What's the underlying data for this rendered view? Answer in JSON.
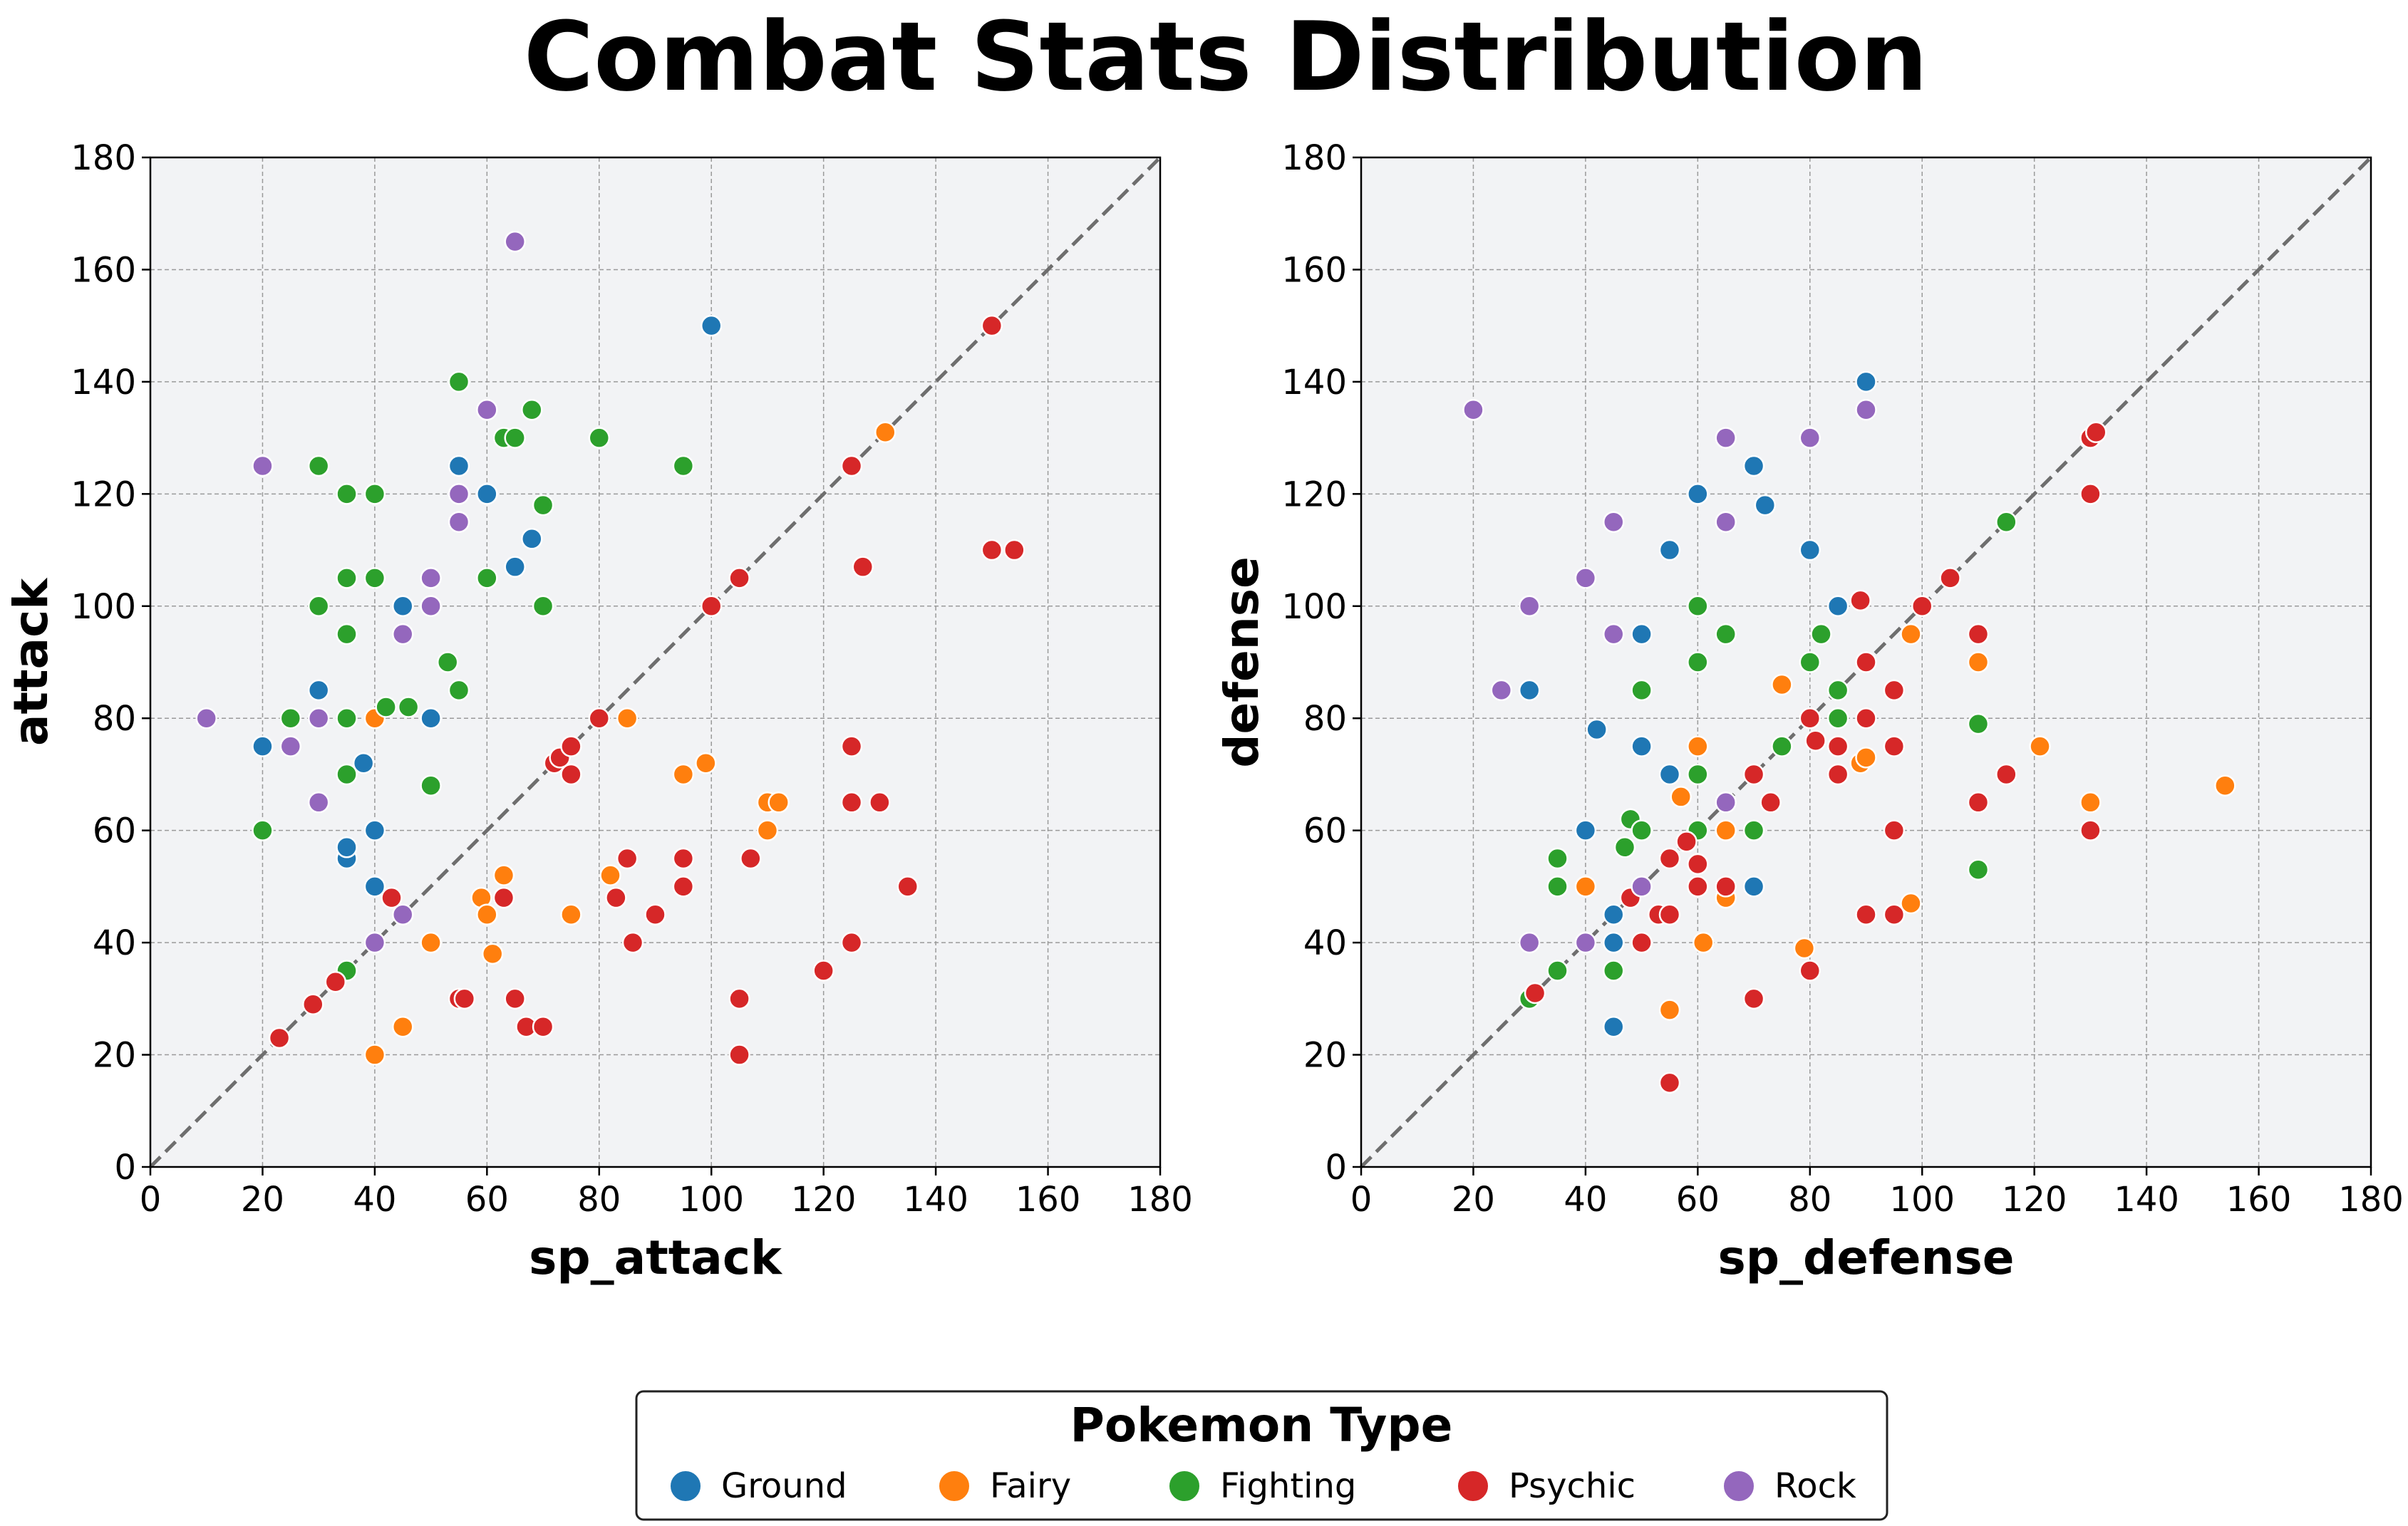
{
  "title": "Combat Stats Distribution",
  "colors": {
    "Ground": "#1f77b4",
    "Fairy": "#ff7f0e",
    "Fighting": "#2ca02c",
    "Psychic": "#d62728",
    "Rock": "#9467bd",
    "plot_bg": "#f2f3f5",
    "grid": "#9a9a9a",
    "diagonal": "#6e6e6e"
  },
  "legend": {
    "title": "Pokemon Type",
    "entries": [
      "Ground",
      "Fairy",
      "Fighting",
      "Psychic",
      "Rock"
    ]
  },
  "chart_data": [
    {
      "type": "scatter",
      "xlabel": "sp_attack",
      "ylabel": "attack",
      "xlim": [
        0,
        180
      ],
      "ylim": [
        0,
        180
      ],
      "xticks": [
        "0",
        "20",
        "40",
        "60",
        "80",
        "100",
        "120",
        "140",
        "160",
        "180"
      ],
      "yticks": [
        "0",
        "20",
        "40",
        "60",
        "80",
        "100",
        "120",
        "140",
        "160",
        "180"
      ],
      "grid": true,
      "reference_line": "y = x",
      "series": [
        {
          "name": "Ground",
          "points": [
            [
              20,
              75
            ],
            [
              30,
              85
            ],
            [
              35,
              55
            ],
            [
              35,
              57
            ],
            [
              38,
              72
            ],
            [
              40,
              60
            ],
            [
              40,
              50
            ],
            [
              45,
              100
            ],
            [
              50,
              80
            ],
            [
              55,
              125
            ],
            [
              60,
              120
            ],
            [
              65,
              107
            ],
            [
              68,
              112
            ],
            [
              100,
              150
            ]
          ]
        },
        {
          "name": "Fairy",
          "points": [
            [
              40,
              80
            ],
            [
              40,
              20
            ],
            [
              45,
              25
            ],
            [
              50,
              40
            ],
            [
              59,
              48
            ],
            [
              60,
              45
            ],
            [
              61,
              38
            ],
            [
              63,
              52
            ],
            [
              75,
              45
            ],
            [
              82,
              52
            ],
            [
              85,
              80
            ],
            [
              95,
              70
            ],
            [
              99,
              72
            ],
            [
              110,
              65
            ],
            [
              110,
              60
            ],
            [
              112,
              65
            ],
            [
              131,
              131
            ]
          ]
        },
        {
          "name": "Fighting",
          "points": [
            [
              20,
              60
            ],
            [
              25,
              80
            ],
            [
              30,
              125
            ],
            [
              30,
              100
            ],
            [
              35,
              120
            ],
            [
              35,
              105
            ],
            [
              35,
              95
            ],
            [
              35,
              80
            ],
            [
              35,
              70
            ],
            [
              35,
              35
            ],
            [
              40,
              120
            ],
            [
              40,
              105
            ],
            [
              42,
              82
            ],
            [
              46,
              82
            ],
            [
              50,
              68
            ],
            [
              53,
              90
            ],
            [
              55,
              140
            ],
            [
              55,
              85
            ],
            [
              60,
              105
            ],
            [
              63,
              130
            ],
            [
              65,
              130
            ],
            [
              68,
              135
            ],
            [
              70,
              118
            ],
            [
              70,
              100
            ],
            [
              80,
              130
            ],
            [
              95,
              125
            ]
          ]
        },
        {
          "name": "Psychic",
          "points": [
            [
              23,
              23
            ],
            [
              29,
              29
            ],
            [
              33,
              33
            ],
            [
              43,
              48
            ],
            [
              55,
              30
            ],
            [
              56,
              30
            ],
            [
              63,
              48
            ],
            [
              65,
              30
            ],
            [
              67,
              25
            ],
            [
              70,
              25
            ],
            [
              72,
              72
            ],
            [
              73,
              73
            ],
            [
              75,
              75
            ],
            [
              75,
              70
            ],
            [
              80,
              80
            ],
            [
              83,
              48
            ],
            [
              85,
              55
            ],
            [
              86,
              40
            ],
            [
              90,
              45
            ],
            [
              95,
              55
            ],
            [
              95,
              50
            ],
            [
              100,
              100
            ],
            [
              105,
              105
            ],
            [
              105,
              30
            ],
            [
              105,
              20
            ],
            [
              107,
              55
            ],
            [
              120,
              35
            ],
            [
              125,
              125
            ],
            [
              125,
              75
            ],
            [
              125,
              65
            ],
            [
              125,
              40
            ],
            [
              127,
              107
            ],
            [
              130,
              65
            ],
            [
              135,
              50
            ],
            [
              150,
              150
            ],
            [
              150,
              110
            ],
            [
              154,
              110
            ]
          ]
        },
        {
          "name": "Rock",
          "points": [
            [
              10,
              80
            ],
            [
              20,
              125
            ],
            [
              25,
              75
            ],
            [
              30,
              80
            ],
            [
              30,
              65
            ],
            [
              40,
              40
            ],
            [
              45,
              95
            ],
            [
              45,
              45
            ],
            [
              50,
              105
            ],
            [
              50,
              100
            ],
            [
              55,
              120
            ],
            [
              55,
              115
            ],
            [
              60,
              135
            ],
            [
              65,
              165
            ]
          ]
        }
      ]
    },
    {
      "type": "scatter",
      "xlabel": "sp_defense",
      "ylabel": "defense",
      "xlim": [
        0,
        180
      ],
      "ylim": [
        0,
        180
      ],
      "xticks": [
        "0",
        "20",
        "40",
        "60",
        "80",
        "100",
        "120",
        "140",
        "160",
        "180"
      ],
      "yticks": [
        "0",
        "20",
        "40",
        "60",
        "80",
        "100",
        "120",
        "140",
        "160",
        "180"
      ],
      "grid": true,
      "reference_line": "y = x",
      "series": [
        {
          "name": "Ground",
          "points": [
            [
              30,
              85
            ],
            [
              40,
              60
            ],
            [
              42,
              78
            ],
            [
              45,
              45
            ],
            [
              45,
              40
            ],
            [
              45,
              25
            ],
            [
              50,
              95
            ],
            [
              50,
              75
            ],
            [
              55,
              110
            ],
            [
              55,
              70
            ],
            [
              60,
              120
            ],
            [
              70,
              125
            ],
            [
              70,
              50
            ],
            [
              72,
              118
            ],
            [
              80,
              110
            ],
            [
              85,
              100
            ],
            [
              90,
              140
            ]
          ]
        },
        {
          "name": "Fairy",
          "points": [
            [
              40,
              50
            ],
            [
              55,
              28
            ],
            [
              57,
              66
            ],
            [
              60,
              75
            ],
            [
              61,
              40
            ],
            [
              65,
              60
            ],
            [
              65,
              48
            ],
            [
              75,
              86
            ],
            [
              79,
              39
            ],
            [
              89,
              72
            ],
            [
              90,
              73
            ],
            [
              98,
              95
            ],
            [
              98,
              47
            ],
            [
              110,
              90
            ],
            [
              121,
              75
            ],
            [
              130,
              65
            ],
            [
              154,
              68
            ]
          ]
        },
        {
          "name": "Fighting",
          "points": [
            [
              30,
              30
            ],
            [
              35,
              55
            ],
            [
              35,
              50
            ],
            [
              35,
              35
            ],
            [
              45,
              35
            ],
            [
              47,
              57
            ],
            [
              48,
              62
            ],
            [
              50,
              85
            ],
            [
              50,
              60
            ],
            [
              60,
              100
            ],
            [
              60,
              90
            ],
            [
              60,
              70
            ],
            [
              60,
              60
            ],
            [
              65,
              95
            ],
            [
              70,
              60
            ],
            [
              75,
              75
            ],
            [
              80,
              90
            ],
            [
              82,
              95
            ],
            [
              85,
              85
            ],
            [
              85,
              80
            ],
            [
              110,
              79
            ],
            [
              110,
              53
            ],
            [
              115,
              115
            ]
          ]
        },
        {
          "name": "Psychic",
          "points": [
            [
              31,
              31
            ],
            [
              48,
              48
            ],
            [
              50,
              40
            ],
            [
              53,
              45
            ],
            [
              55,
              55
            ],
            [
              55,
              45
            ],
            [
              55,
              15
            ],
            [
              58,
              58
            ],
            [
              60,
              54
            ],
            [
              60,
              50
            ],
            [
              65,
              50
            ],
            [
              70,
              70
            ],
            [
              70,
              30
            ],
            [
              73,
              65
            ],
            [
              80,
              80
            ],
            [
              80,
              35
            ],
            [
              81,
              76
            ],
            [
              85,
              75
            ],
            [
              85,
              70
            ],
            [
              89,
              101
            ],
            [
              90,
              90
            ],
            [
              90,
              80
            ],
            [
              90,
              45
            ],
            [
              95,
              85
            ],
            [
              95,
              75
            ],
            [
              95,
              60
            ],
            [
              95,
              45
            ],
            [
              100,
              100
            ],
            [
              105,
              105
            ],
            [
              110,
              95
            ],
            [
              110,
              65
            ],
            [
              115,
              70
            ],
            [
              130,
              130
            ],
            [
              130,
              120
            ],
            [
              130,
              60
            ],
            [
              131,
              131
            ]
          ]
        },
        {
          "name": "Rock",
          "points": [
            [
              20,
              135
            ],
            [
              25,
              85
            ],
            [
              30,
              100
            ],
            [
              30,
              40
            ],
            [
              40,
              105
            ],
            [
              40,
              40
            ],
            [
              45,
              115
            ],
            [
              45,
              95
            ],
            [
              50,
              50
            ],
            [
              65,
              130
            ],
            [
              65,
              115
            ],
            [
              65,
              65
            ],
            [
              80,
              130
            ],
            [
              90,
              135
            ]
          ]
        }
      ]
    }
  ]
}
